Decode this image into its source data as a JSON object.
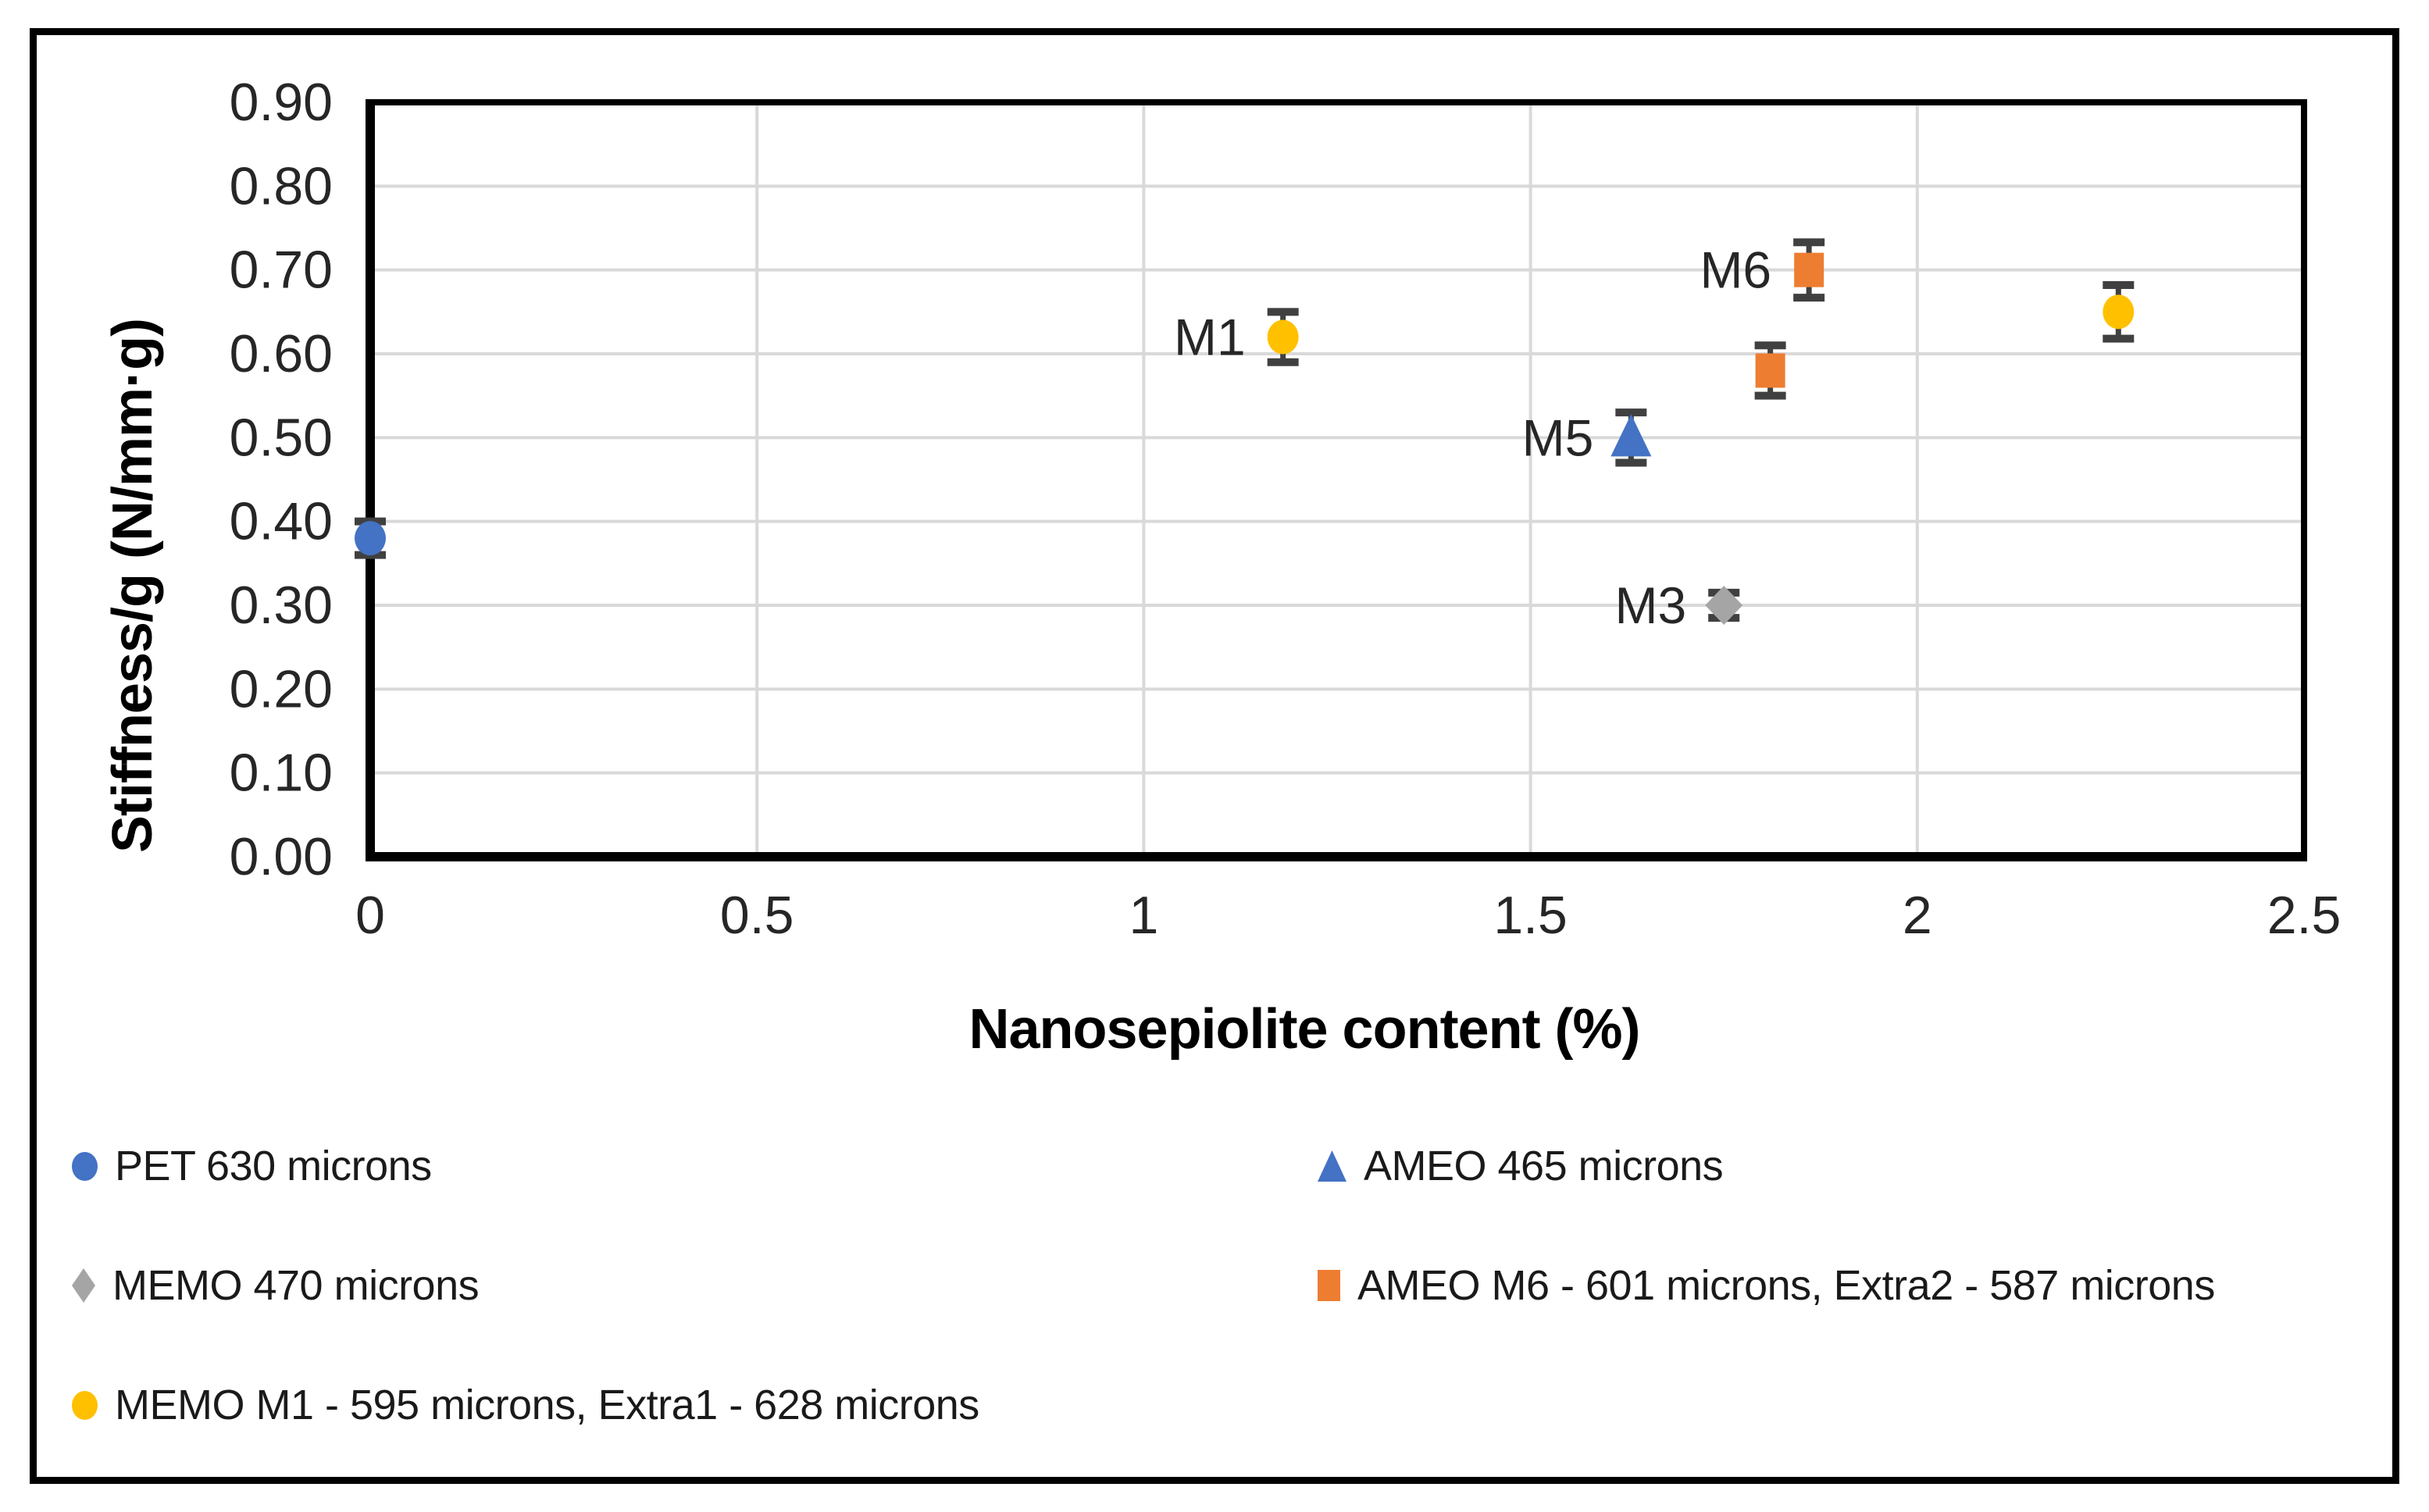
{
  "figure": {
    "background": "#FFFFFF",
    "border_color": "#000000"
  },
  "chart_data": {
    "type": "scatter",
    "title": "",
    "xlabel": "Nanosepiolite content (%)",
    "ylabel": "Stiffness/g (N/mm·g)",
    "xlim": [
      0,
      2.5
    ],
    "ylim": [
      0,
      0.9
    ],
    "grid": true,
    "legend_position": "bottom, two columns",
    "x_ticks": [
      {
        "value": 0,
        "label": "0"
      },
      {
        "value": 0.5,
        "label": "0.5"
      },
      {
        "value": 1,
        "label": "1"
      },
      {
        "value": 1.5,
        "label": "1.5"
      },
      {
        "value": 2,
        "label": "2"
      },
      {
        "value": 2.5,
        "label": "2.5"
      }
    ],
    "y_ticks": [
      {
        "value": 0.0,
        "label": "0.00"
      },
      {
        "value": 0.1,
        "label": "0.10"
      },
      {
        "value": 0.2,
        "label": "0.20"
      },
      {
        "value": 0.3,
        "label": "0.30"
      },
      {
        "value": 0.4,
        "label": "0.40"
      },
      {
        "value": 0.5,
        "label": "0.50"
      },
      {
        "value": 0.6,
        "label": "0.60"
      },
      {
        "value": 0.7,
        "label": "0.70"
      },
      {
        "value": 0.8,
        "label": "0.80"
      },
      {
        "value": 0.9,
        "label": "0.90"
      }
    ],
    "colors": {
      "gridline": "#D9D9D9",
      "axis": "#000000",
      "error_bar": "#404040",
      "tick_text": "#262626",
      "point_label_text": "#262626"
    },
    "series": [
      {
        "name": "PET 630 microns",
        "marker": "circle",
        "color": "#4472C4",
        "points": [
          {
            "x": 0,
            "y": 0.38,
            "err": 0.02
          }
        ]
      },
      {
        "name": "AMEO 465 microns",
        "marker": "triangle",
        "color": "#4472C4",
        "points": [
          {
            "x": 1.63,
            "y": 0.5,
            "err": 0.03,
            "label": "M5"
          }
        ]
      },
      {
        "name": "MEMO 470 microns",
        "marker": "diamond",
        "color": "#A5A5A5",
        "points": [
          {
            "x": 1.75,
            "y": 0.3,
            "err": 0.015,
            "label": "M3"
          }
        ]
      },
      {
        "name": "AMEO M6 - 601 microns, Extra2 - 587 microns",
        "marker": "square",
        "color": "#ED7D31",
        "points": [
          {
            "x": 1.86,
            "y": 0.7,
            "err": 0.033,
            "label": "M6"
          },
          {
            "x": 1.81,
            "y": 0.58,
            "err": 0.03
          }
        ]
      },
      {
        "name": "MEMO M1 - 595 microns, Extra1 - 628 microns",
        "marker": "circle",
        "color": "#FFC000",
        "points": [
          {
            "x": 1.18,
            "y": 0.62,
            "err": 0.03,
            "label": "M1"
          },
          {
            "x": 2.26,
            "y": 0.65,
            "err": 0.032
          }
        ]
      }
    ]
  },
  "legend": {
    "items": [
      {
        "series": 0,
        "col": 0,
        "row": 0
      },
      {
        "series": 1,
        "col": 1,
        "row": 0
      },
      {
        "series": 2,
        "col": 0,
        "row": 1
      },
      {
        "series": 3,
        "col": 1,
        "row": 1
      },
      {
        "series": 4,
        "col": 0,
        "row": 2
      }
    ]
  }
}
